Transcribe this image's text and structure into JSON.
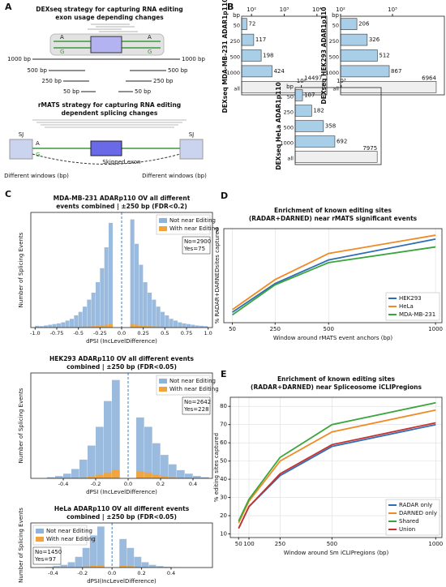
{
  "figure": {
    "panel_labels": [
      "A",
      "B",
      "C",
      "D",
      "E"
    ],
    "diagram": {
      "dexseq_title": [
        "DEXseq strategy for capturing RNA editing",
        "exon usage depending changes"
      ],
      "allele_labels": [
        "A",
        "A",
        "G",
        "G"
      ],
      "windows": [
        "1000 bp",
        "1000 bp",
        "500 bp",
        "500 bp",
        "250 bp",
        "250 bp",
        "50 bp",
        "50 bp"
      ],
      "rmats_title": [
        "rMATS strategy for capturing RNA editing",
        "dependent splicing changes"
      ],
      "sj": [
        "SJ",
        "SJ"
      ],
      "rmats_alleles": [
        "A",
        "G"
      ],
      "exon_label": "Skipped exon",
      "window_labels": [
        "Different windows (bp)",
        "Different windows (bp)"
      ]
    }
  },
  "chart_data": [
    {
      "type": "hbar",
      "xscale": "log",
      "ylabel": "DEXseq MDA-MB-231 ADAR1p110",
      "category_header": "bp",
      "categories": [
        "50",
        "250",
        "500",
        "1000",
        "all"
      ],
      "values": [
        72,
        117,
        198,
        424,
        14497
      ],
      "colors": [
        "#a9cfe8",
        "#a9cfe8",
        "#a9cfe8",
        "#a9cfe8",
        "#efefef"
      ],
      "xlim": [
        50,
        20000
      ],
      "xticks": [
        {
          "value": 100,
          "label": "10²"
        },
        {
          "value": 1000,
          "label": "10³"
        },
        {
          "value": 10000,
          "label": "10⁴"
        }
      ]
    },
    {
      "type": "hbar",
      "xscale": "log",
      "ylabel": "DEXseq HEK293 ADAR1p110",
      "category_header": "bp",
      "categories": [
        "50",
        "250",
        "500",
        "1000",
        "all"
      ],
      "values": [
        206,
        326,
        512,
        867,
        6964
      ],
      "colors": [
        "#a9cfe8",
        "#a9cfe8",
        "#a9cfe8",
        "#a9cfe8",
        "#efefef"
      ],
      "xlim": [
        100,
        10000
      ],
      "xticks": [
        {
          "value": 100,
          "label": "10²"
        },
        {
          "value": 1000,
          "label": "10³"
        }
      ]
    },
    {
      "type": "hbar",
      "xscale": "log",
      "ylabel": "DEXseq HeLa ADAR1p110",
      "category_header": "bp",
      "categories": [
        "50",
        "250",
        "500",
        "1000",
        "all"
      ],
      "values": [
        107,
        182,
        358,
        692,
        7975
      ],
      "colors": [
        "#a9cfe8",
        "#a9cfe8",
        "#a9cfe8",
        "#a9cfe8",
        "#efefef"
      ],
      "xlim": [
        70,
        10000
      ],
      "xticks": [
        {
          "value": 100,
          "label": "10²"
        },
        {
          "value": 1000,
          "label": "10³"
        }
      ]
    },
    {
      "type": "histogram",
      "title": [
        "MDA-MB-231 ADARp110 OV all different",
        "events combined | ±250 bp (FDR<0.2)"
      ],
      "xlabel": "dPSI (IncLevelDifference)",
      "ylabel": "Number of Splicing Events",
      "bins": [
        -1,
        -0.95,
        -0.9,
        -0.85,
        -0.8,
        -0.75,
        -0.7,
        -0.65,
        -0.6,
        -0.55,
        -0.5,
        -0.45,
        -0.4,
        -0.35,
        -0.3,
        -0.25,
        -0.2,
        -0.15,
        -0.1,
        -0.05,
        0,
        0.05,
        0.1,
        0.15,
        0.2,
        0.25,
        0.3,
        0.35,
        0.4,
        0.45,
        0.5,
        0.55,
        0.6,
        0.65,
        0.7,
        0.75,
        0.8,
        0.85,
        0.9,
        0.95,
        1
      ],
      "series": [
        {
          "name": "Not near Editing",
          "color": "#8fb4da",
          "values": [
            5,
            4,
            6,
            8,
            10,
            12,
            15,
            20,
            25,
            35,
            45,
            60,
            80,
            100,
            130,
            170,
            230,
            300,
            0,
            0,
            0,
            0,
            310,
            240,
            180,
            130,
            100,
            80,
            60,
            45,
            35,
            25,
            20,
            15,
            12,
            10,
            8,
            6,
            5,
            4
          ]
        },
        {
          "name": "With near Editing",
          "color": "#f2a33a",
          "values": [
            0,
            0,
            0,
            0,
            0,
            1,
            1,
            1,
            1,
            2,
            2,
            3,
            3,
            4,
            5,
            6,
            8,
            10,
            0,
            0,
            0,
            0,
            10,
            8,
            6,
            5,
            4,
            3,
            3,
            2,
            2,
            1,
            1,
            1,
            1,
            0,
            0,
            0,
            0,
            0
          ]
        }
      ],
      "xlim": [
        -1.05,
        1.05
      ],
      "ylim": [
        0,
        330
      ],
      "xticks": [
        {
          "value": -1,
          "label": "-1.0"
        },
        -0.75,
        -0.5,
        -0.25,
        {
          "value": 0,
          "label": "0.0"
        },
        0.25,
        0.5,
        0.75,
        {
          "value": 1,
          "label": "1.0"
        }
      ],
      "reference_line": 0,
      "legend": "upper right",
      "annotations": [
        "No=2900",
        "Yes=75"
      ]
    },
    {
      "type": "histogram",
      "title": [
        "HEK293 ADARp110 OV all different events",
        "combined | ±250 bp (FDR<0.05)"
      ],
      "xlabel": "dPSI (IncLevelDifference)",
      "ylabel": "Number of Splicing Events",
      "bins": [
        -0.5,
        -0.45,
        -0.4,
        -0.35,
        -0.3,
        -0.25,
        -0.2,
        -0.15,
        -0.1,
        -0.05,
        0,
        0.05,
        0.1,
        0.15,
        0.2,
        0.25,
        0.3,
        0.35,
        0.4,
        0.45,
        0.5
      ],
      "series": [
        {
          "name": "Not near Editing",
          "color": "#8fb4da",
          "values": [
            5,
            10,
            20,
            40,
            80,
            140,
            220,
            330,
            420,
            0,
            0,
            260,
            220,
            150,
            100,
            60,
            35,
            20,
            10,
            5
          ]
        },
        {
          "name": "With near Editing",
          "color": "#f2a33a",
          "values": [
            0,
            0,
            1,
            2,
            4,
            8,
            15,
            25,
            35,
            0,
            0,
            30,
            25,
            15,
            10,
            5,
            3,
            1,
            0,
            0
          ]
        }
      ],
      "xlim": [
        -0.6,
        0.52
      ],
      "ylim": [
        0,
        450
      ],
      "xticks": [
        -0.4,
        -0.2,
        {
          "value": 0,
          "label": "0.0"
        },
        0.2,
        0.4
      ],
      "reference_line": 0,
      "legend": "upper right",
      "annotations": [
        "No=2642",
        "Yes=228"
      ]
    },
    {
      "type": "histogram",
      "title": [
        "HeLa ADARp110 OV all different events",
        "combined | ±250 bp (FDR<0.05)"
      ],
      "xlabel": "dPSI(IncLevelDifference)",
      "ylabel": "Number of Splicing Events",
      "bins": [
        -0.5,
        -0.45,
        -0.4,
        -0.35,
        -0.3,
        -0.25,
        -0.2,
        -0.15,
        -0.1,
        -0.05,
        0,
        0.05,
        0.1,
        0.15,
        0.2,
        0.25,
        0.3,
        0.35,
        0.4,
        0.45,
        0.5
      ],
      "series": [
        {
          "name": "Not near Editing",
          "color": "#8fb4da",
          "values": [
            2,
            4,
            8,
            15,
            30,
            60,
            110,
            180,
            230,
            0,
            0,
            160,
            110,
            60,
            30,
            15,
            8,
            4,
            2,
            1
          ]
        },
        {
          "name": "With near Editing",
          "color": "#f2a33a",
          "values": [
            0,
            0,
            0,
            1,
            2,
            3,
            6,
            10,
            14,
            0,
            0,
            12,
            8,
            4,
            2,
            1,
            0,
            0,
            0,
            0
          ]
        }
      ],
      "xlim": [
        -0.55,
        0.68
      ],
      "ylim": [
        0,
        250
      ],
      "xticks": [
        -0.4,
        -0.2,
        {
          "value": 0,
          "label": "0.0"
        },
        0.2,
        0.4
      ],
      "reference_line": 0,
      "legend": "upper left",
      "annotations": [
        "No=1450",
        "Yes=97"
      ]
    },
    {
      "type": "line",
      "title": [
        "Enrichment of known editing sites",
        "(RADAR+DARNED) near rMATS significant events"
      ],
      "xlabel": "Window around rMATS event anchors (bp)",
      "ylabel": "% RADAR+DARNEDsites captured",
      "x": [
        50,
        250,
        500,
        1000
      ],
      "series": [
        {
          "name": "HEK293",
          "color": "#2f6db5",
          "values": [
            8,
            30,
            48,
            64
          ]
        },
        {
          "name": "HeLa",
          "color": "#f08a24",
          "values": [
            10,
            33,
            53,
            67
          ]
        },
        {
          "name": "MDA-MB-231",
          "color": "#3aa53a",
          "values": [
            6,
            29,
            46,
            58
          ]
        }
      ],
      "xlim": [
        10,
        1030
      ],
      "ylim": [
        0,
        72
      ],
      "xticks": [
        50,
        250,
        500,
        1000
      ],
      "grid": true,
      "legend": "lower right"
    },
    {
      "type": "line",
      "title": [
        "Enrichment of known editing sites",
        "(RADAR+DARNED) near Spliceosome iCLIPregions"
      ],
      "xlabel": "Window around Sm iCLIPregions (bp)",
      "ylabel": "% editing sites captured",
      "x": [
        50,
        100,
        250,
        500,
        1000
      ],
      "series": [
        {
          "name": "RADAR only",
          "color": "#2f6db5",
          "values": [
            13,
            25,
            42,
            58,
            70
          ]
        },
        {
          "name": "DARNED only",
          "color": "#f08a24",
          "values": [
            16,
            28,
            50,
            66,
            78
          ]
        },
        {
          "name": "Shared",
          "color": "#3aa53a",
          "values": [
            17,
            29,
            52,
            70,
            82
          ]
        },
        {
          "name": "Union",
          "color": "#c8302c",
          "values": [
            13,
            25,
            43,
            59,
            71
          ]
        }
      ],
      "xlim": [
        10,
        1030
      ],
      "ylim": [
        8,
        85
      ],
      "xticks": [
        50,
        100,
        250,
        500,
        1000
      ],
      "yticks": [
        10,
        20,
        30,
        40,
        50,
        60,
        70,
        80
      ],
      "grid": true,
      "legend": "lower right"
    }
  ]
}
